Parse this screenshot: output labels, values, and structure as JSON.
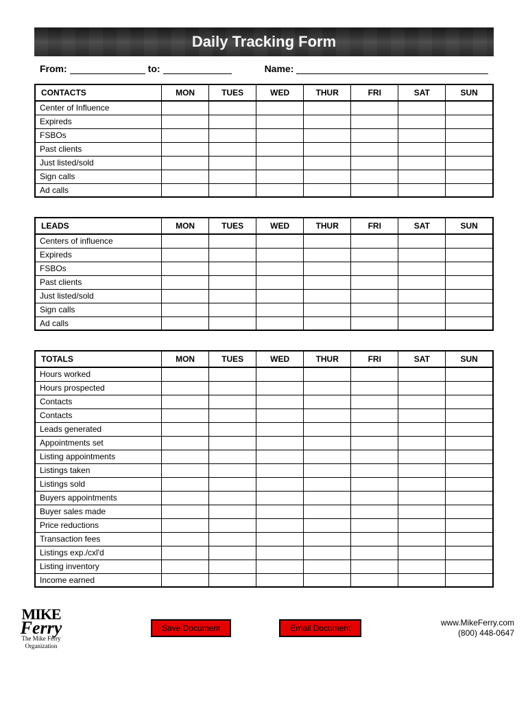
{
  "title": "Daily Tracking Form",
  "meta": {
    "from_label": "From:",
    "to_label": "to:",
    "name_label": "Name:"
  },
  "days": [
    "MON",
    "TUES",
    "WED",
    "THUR",
    "FRI",
    "SAT",
    "SUN"
  ],
  "tables": [
    {
      "header": "CONTACTS",
      "rows": [
        "Center of Influence",
        "Expireds",
        "FSBOs",
        "Past clients",
        "Just listed/sold",
        "Sign calls",
        "Ad calls"
      ]
    },
    {
      "header": "LEADS",
      "rows": [
        "Centers of influence",
        "Expireds",
        "FSBOs",
        "Past clients",
        "Just listed/sold",
        "Sign calls",
        "Ad calls"
      ]
    },
    {
      "header": "TOTALS",
      "rows": [
        "Hours worked",
        "Hours prospected",
        "Contacts",
        "Contacts",
        "Leads generated",
        "Appointments set",
        "Listing appointments",
        "Listings taken",
        "Listings sold",
        "Buyers appointments",
        "Buyer sales made",
        "Price reductions",
        "Transaction fees",
        "Listings exp./cxl'd",
        "Listing inventory",
        "Income earned"
      ]
    }
  ],
  "buttons": {
    "save": "Save Document",
    "email": "Email Document"
  },
  "logo": {
    "line1": "MIKE",
    "line2": "Ferry",
    "sub1": "The Mike Ferry",
    "sub2": "Organization"
  },
  "contact": {
    "url": "www.MikeFerry.com",
    "phone": "(800) 448-0647"
  },
  "colors": {
    "button_bg": "#e60000",
    "border": "#000000"
  }
}
